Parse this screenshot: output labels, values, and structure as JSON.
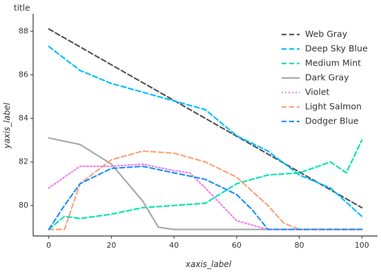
{
  "chart_data": {
    "type": "line",
    "title": "title",
    "xlabel": "xaxis_label",
    "ylabel": "yaxis_label",
    "xlim": [
      -5,
      105
    ],
    "ylim": [
      78.6,
      88.8
    ],
    "xticks": [
      0,
      20,
      40,
      60,
      80,
      100
    ],
    "yticks": [
      80,
      82,
      84,
      86,
      88
    ],
    "grid": false,
    "legend_position": "right",
    "series": [
      {
        "name": "Web Gray",
        "color": "#555555",
        "dash": "dashed",
        "x": [
          0,
          100
        ],
        "y": [
          88.1,
          79.9
        ]
      },
      {
        "name": "Deep Sky Blue",
        "color": "#00BFFF",
        "dash": "dashed",
        "x": [
          0,
          10,
          20,
          30,
          40,
          50,
          60,
          70,
          80,
          90,
          100
        ],
        "y": [
          87.3,
          86.2,
          85.6,
          85.2,
          84.8,
          84.4,
          83.2,
          82.5,
          81.4,
          80.8,
          79.5
        ]
      },
      {
        "name": "Medium Mint",
        "color": "#00E5B0",
        "dash": "dashed",
        "x": [
          0,
          5,
          10,
          20,
          30,
          40,
          50,
          60,
          70,
          80,
          90,
          95,
          100
        ],
        "y": [
          78.9,
          79.5,
          79.4,
          79.6,
          79.9,
          80.0,
          80.1,
          81.0,
          81.4,
          81.5,
          82.0,
          81.5,
          83.0
        ]
      },
      {
        "name": "Dark Gray",
        "color": "#A8A8A8",
        "dash": "solid",
        "x": [
          0,
          10,
          20,
          30,
          35,
          40,
          50,
          60,
          70,
          80,
          90,
          100
        ],
        "y": [
          83.1,
          82.8,
          81.9,
          80.2,
          79.0,
          78.9,
          78.9,
          78.9,
          78.9,
          78.9,
          78.9,
          78.9
        ]
      },
      {
        "name": "Violet",
        "color": "#EE82EE",
        "dash": "dotted",
        "x": [
          0,
          10,
          20,
          30,
          40,
          45,
          50,
          60,
          70,
          75,
          80,
          90,
          100
        ],
        "y": [
          80.8,
          81.8,
          81.8,
          81.9,
          81.6,
          81.5,
          80.8,
          79.3,
          78.9,
          78.9,
          78.9,
          78.9,
          78.9
        ]
      },
      {
        "name": "Light Salmon",
        "color": "#FFA07A",
        "dash": "dashed",
        "x": [
          0,
          5,
          10,
          20,
          30,
          40,
          50,
          60,
          70,
          75,
          80,
          90,
          100
        ],
        "y": [
          78.9,
          78.9,
          81.0,
          82.1,
          82.5,
          82.4,
          82.0,
          81.3,
          80.0,
          79.2,
          78.9,
          78.9,
          78.9
        ]
      },
      {
        "name": "Dodger Blue",
        "color": "#1E90FF",
        "dash": "dashed",
        "x": [
          0,
          5,
          10,
          20,
          30,
          40,
          50,
          60,
          65,
          70,
          75,
          80,
          90,
          100
        ],
        "y": [
          78.9,
          80.0,
          81.0,
          81.7,
          81.8,
          81.5,
          81.2,
          80.5,
          79.8,
          78.9,
          78.9,
          78.9,
          78.9,
          78.9
        ]
      }
    ]
  }
}
